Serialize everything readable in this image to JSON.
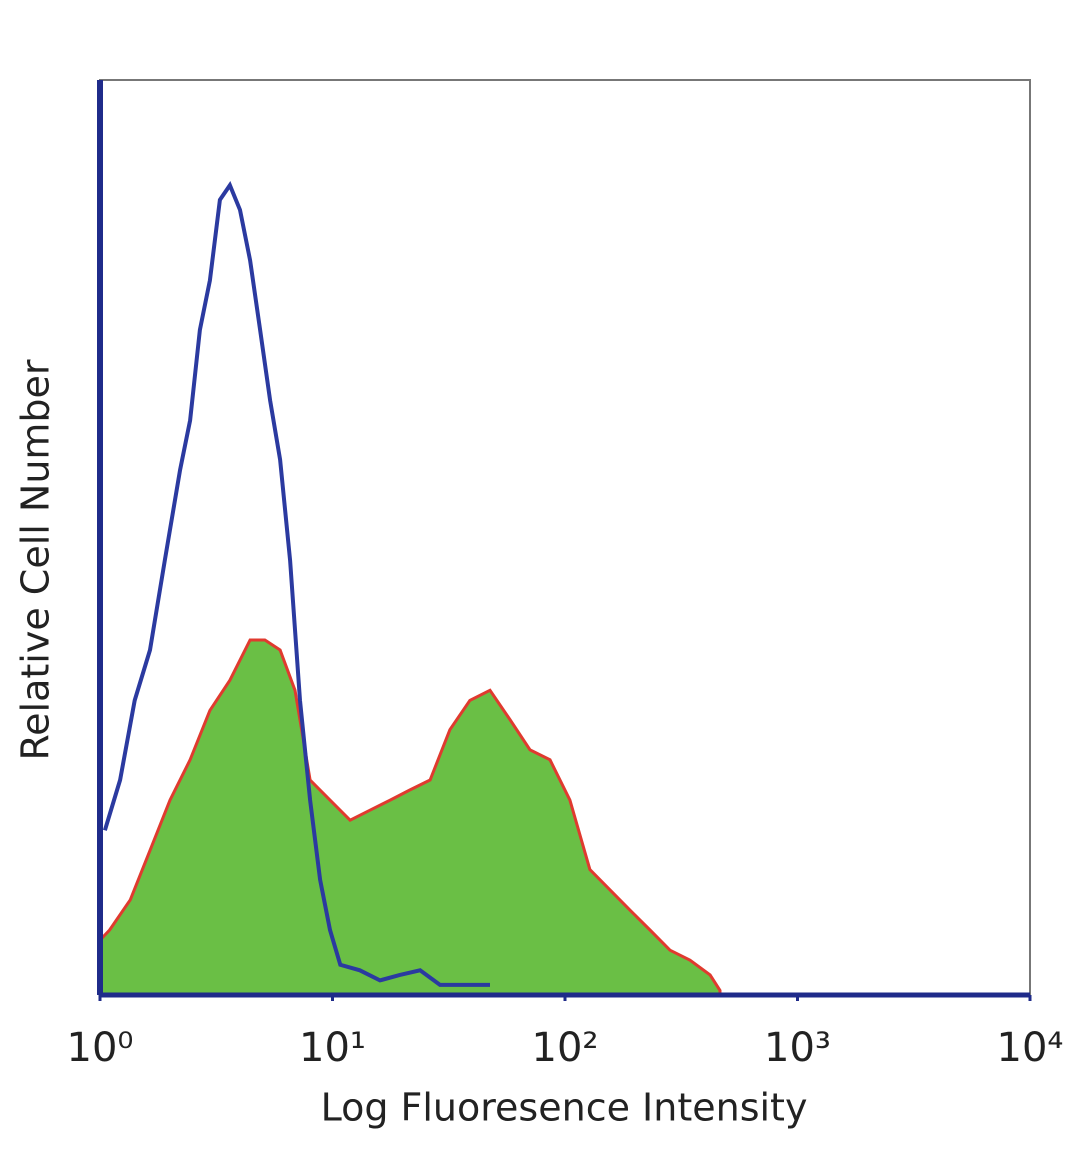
{
  "chart_data": {
    "type": "area",
    "xlabel": "Log Fluoresence Intensity",
    "ylabel": "Relative Cell Number",
    "xscale": "log",
    "xlim": [
      1,
      10000
    ],
    "xticks": [
      {
        "value": 1,
        "label": "10⁰"
      },
      {
        "value": 10,
        "label": "10¹"
      },
      {
        "value": 100,
        "label": "10²"
      },
      {
        "value": 1000,
        "label": "10³"
      },
      {
        "value": 10000,
        "label": "10⁴"
      }
    ],
    "ylim": [
      0,
      100
    ],
    "series": [
      {
        "fill": "#6abf45",
        "color": "#e03a2f",
        "x": [
          1,
          1.1,
          1.35,
          1.64,
          2.0,
          2.44,
          2.97,
          3.62,
          4.42,
          5.12,
          5.95,
          6.9,
          8.01,
          9.76,
          11.9,
          14.5,
          17.7,
          21.5,
          26.3,
          32.0,
          39.0,
          47.6,
          58.0,
          70.7,
          86.2,
          105,
          128,
          156,
          190,
          232,
          283,
          345,
          421,
          464
        ],
        "values": [
          6.0,
          7.1,
          10.4,
          15.8,
          21.3,
          25.7,
          31.1,
          34.4,
          38.8,
          38.8,
          37.7,
          33.3,
          23.5,
          21.3,
          19.1,
          20.2,
          21.3,
          22.4,
          23.5,
          29.0,
          32.2,
          33.3,
          30.1,
          26.8,
          25.7,
          21.3,
          13.7,
          11.5,
          9.3,
          7.1,
          4.9,
          3.8,
          2.2,
          0.5
        ]
      },
      {
        "color": "#2b3aa0",
        "x": [
          1.05,
          1.22,
          1.41,
          1.64,
          1.9,
          2.21,
          2.44,
          2.69,
          2.97,
          3.28,
          3.62,
          4.0,
          4.42,
          4.88,
          5.39,
          5.95,
          6.57,
          7.25,
          8.01,
          8.84,
          9.76,
          10.8,
          13.1,
          16.0,
          19.5,
          23.8,
          29.0,
          35.3,
          47.6
        ],
        "values": [
          18.0,
          23.5,
          32.2,
          37.7,
          47.5,
          57.4,
          62.8,
          72.7,
          78.1,
          86.9,
          88.5,
          85.8,
          80.3,
          72.7,
          65.0,
          58.5,
          47.5,
          32.2,
          21.3,
          12.6,
          7.1,
          3.3,
          2.7,
          1.6,
          2.2,
          2.7,
          1.1,
          1.1,
          1.1
        ]
      }
    ]
  }
}
